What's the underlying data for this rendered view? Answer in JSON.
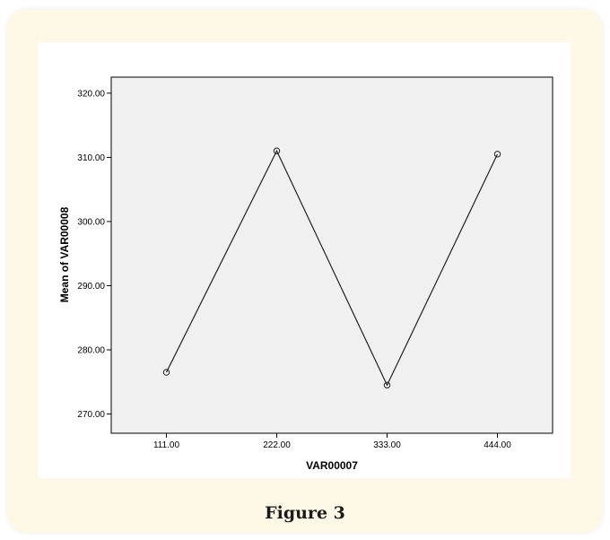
{
  "caption": "Figure 3",
  "colors": {
    "frame_bg": "#fef9e7",
    "plot_bg": "#f0f0f0",
    "line": "#222222"
  },
  "chart_data": {
    "type": "line",
    "title": "",
    "xlabel": "VAR00007",
    "ylabel": "Mean of VAR00008",
    "categories": [
      "111.00",
      "222.00",
      "333.00",
      "444.00"
    ],
    "series": [
      {
        "values": [
          276.5,
          311.0,
          274.5,
          310.5
        ],
        "marker": "circle"
      }
    ],
    "ylim": [
      267.0,
      322.5
    ],
    "yticks": [
      270,
      280,
      290,
      300,
      310,
      320
    ],
    "ytick_labels": [
      "270.00",
      "280.00",
      "290.00",
      "300.00",
      "310.00",
      "320.00"
    ],
    "grid": false,
    "legend": "none"
  }
}
